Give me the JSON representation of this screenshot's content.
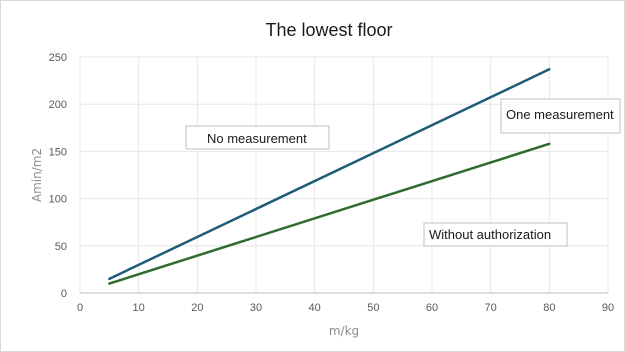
{
  "chart_data": {
    "type": "line",
    "title": "The lowest floor",
    "xlabel": "m/kg",
    "ylabel": "Amin/m2",
    "xlim": [
      0,
      90
    ],
    "ylim": [
      0,
      250
    ],
    "x_ticks": [
      0,
      10,
      20,
      30,
      40,
      50,
      60,
      70,
      80,
      90
    ],
    "y_ticks": [
      0,
      50,
      100,
      150,
      200,
      250
    ],
    "grid": true,
    "legend": "none",
    "series": [
      {
        "x": [
          5,
          80
        ],
        "values": [
          15,
          237
        ],
        "color": "#1f5c7a"
      },
      {
        "x": [
          5,
          80
        ],
        "values": [
          10,
          158
        ],
        "color": "#2e6b2e"
      }
    ],
    "annotations": [
      {
        "text": "No measurement"
      },
      {
        "text": "One measurement"
      },
      {
        "text": "Without authorization"
      }
    ]
  }
}
